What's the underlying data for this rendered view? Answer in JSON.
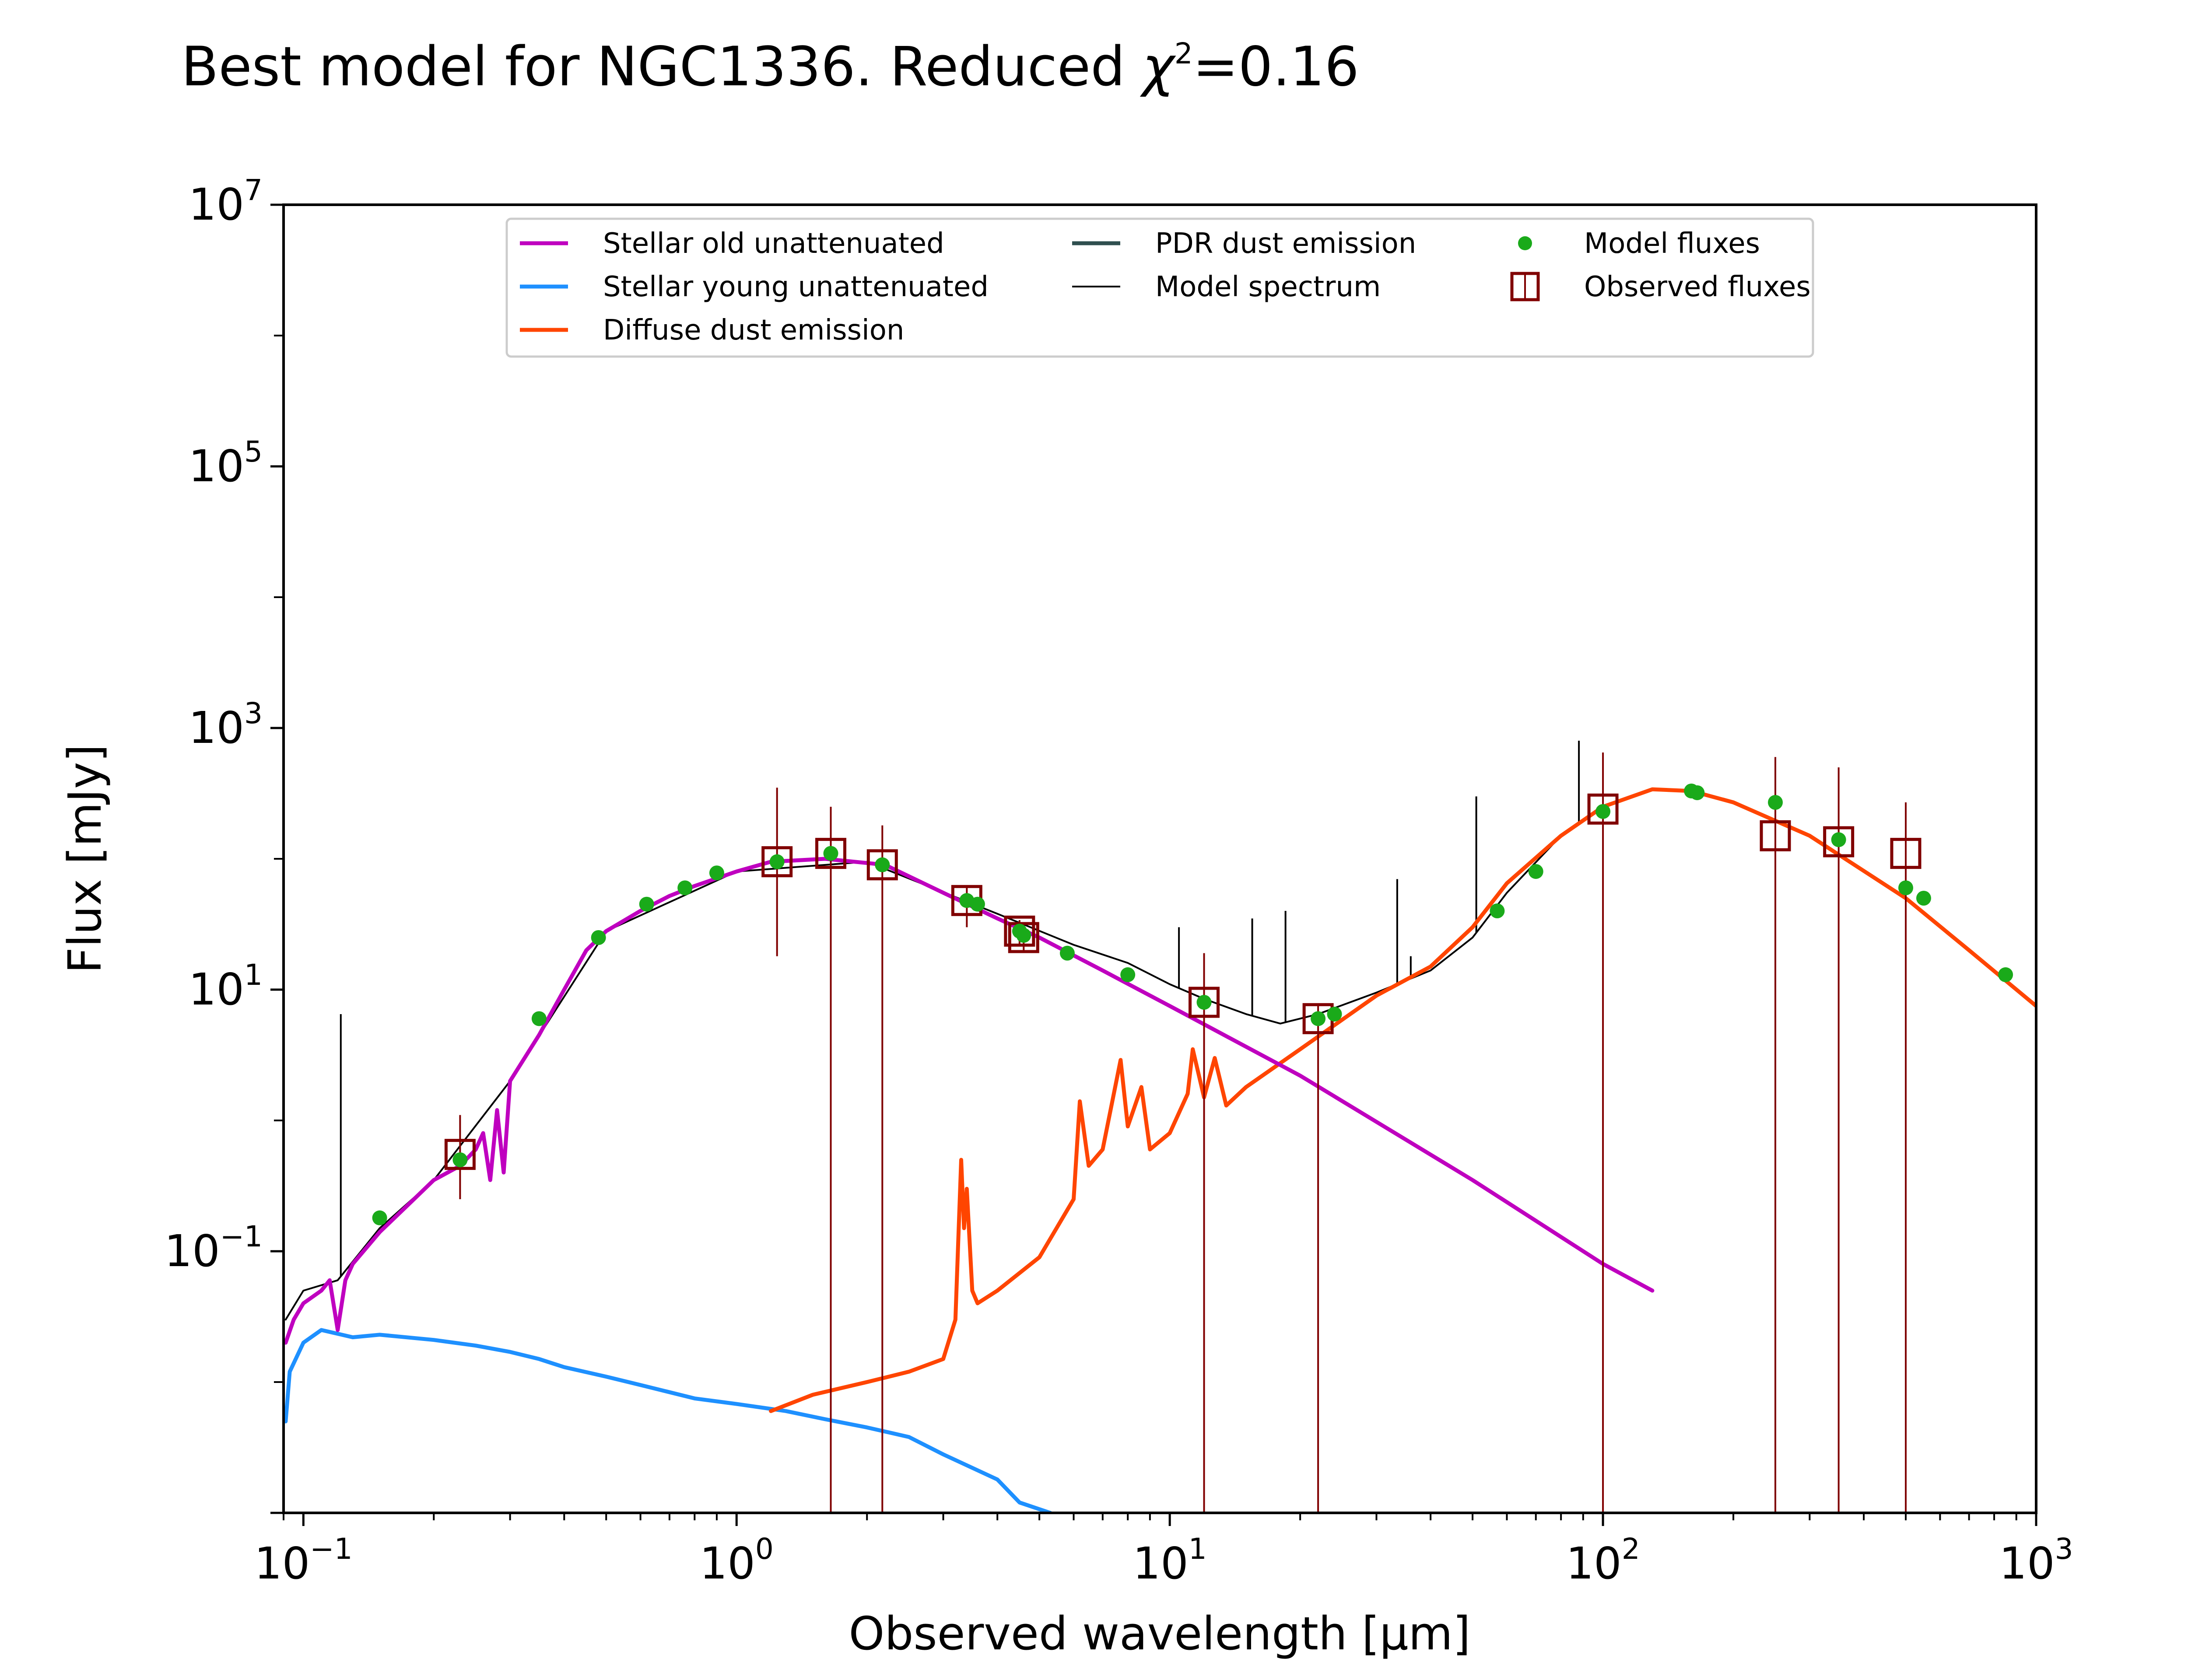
{
  "chart_data": {
    "type": "line",
    "title": "Best model for NGC1336. Reduced χ²=0.16",
    "title_main": "Best model for NGC1336. Reduced ",
    "title_chi": "χ",
    "title_sup": "2",
    "title_tail": "=0.16",
    "xlabel": "Observed wavelength [μm]",
    "ylabel": "Flux [mJy]",
    "x_scale": "log",
    "y_scale": "log",
    "xlim": [
      0.09,
      1000
    ],
    "ylim": [
      0.001,
      10000000
    ],
    "x_ticks": [
      {
        "value": 0.1,
        "base": "10",
        "exp": "−1"
      },
      {
        "value": 1,
        "base": "10",
        "exp": "0"
      },
      {
        "value": 10,
        "base": "10",
        "exp": "1"
      },
      {
        "value": 100,
        "base": "10",
        "exp": "2"
      },
      {
        "value": 1000,
        "base": "10",
        "exp": "3"
      }
    ],
    "y_ticks": [
      {
        "value": 0.1,
        "base": "10",
        "exp": "−1"
      },
      {
        "value": 10,
        "base": "10",
        "exp": "1"
      },
      {
        "value": 1000,
        "base": "10",
        "exp": "3"
      },
      {
        "value": 100000,
        "base": "10",
        "exp": "5"
      },
      {
        "value": 10000000,
        "base": "10",
        "exp": "7"
      }
    ],
    "legend_position": "top-center",
    "legend": [
      {
        "label": "Stellar old unattenuated",
        "kind": "line",
        "color": "#bf00bf"
      },
      {
        "label": "Stellar young unattenuated",
        "kind": "line",
        "color": "#1e90ff"
      },
      {
        "label": "Diffuse dust emission",
        "kind": "line",
        "color": "#ff4500"
      },
      {
        "label": "PDR dust emission",
        "kind": "line",
        "color": "#2f4f4f"
      },
      {
        "label": "Model spectrum",
        "kind": "thin-line",
        "color": "#000000"
      },
      {
        "label": "Model fluxes",
        "kind": "dot",
        "color": "#1aaa1a"
      },
      {
        "label": "Observed fluxes",
        "kind": "square",
        "color": "#800000"
      }
    ],
    "series": [
      {
        "name": "Stellar old unattenuated",
        "color": "#bf00bf",
        "x": [
          0.091,
          0.095,
          0.1,
          0.11,
          0.115,
          0.12,
          0.125,
          0.13,
          0.15,
          0.18,
          0.2,
          0.23,
          0.25,
          0.26,
          0.27,
          0.28,
          0.29,
          0.3,
          0.35,
          0.4,
          0.45,
          0.5,
          0.6,
          0.7,
          0.8,
          1.0,
          1.2,
          1.6,
          2.2,
          3.0,
          4.0,
          5.0,
          7.0,
          10.0,
          20.0,
          50.0,
          100.0,
          130.0
        ],
        "y": [
          0.02,
          0.03,
          0.04,
          0.05,
          0.06,
          0.025,
          0.06,
          0.08,
          0.14,
          0.25,
          0.35,
          0.45,
          0.6,
          0.8,
          0.35,
          1.2,
          0.4,
          2.0,
          4.5,
          10,
          20,
          28,
          40,
          52,
          62,
          80,
          95,
          100,
          90,
          55,
          35,
          25,
          14,
          7.5,
          2.2,
          0.35,
          0.08,
          0.05
        ]
      },
      {
        "name": "Stellar young unattenuated",
        "color": "#1e90ff",
        "x": [
          0.091,
          0.093,
          0.1,
          0.11,
          0.13,
          0.15,
          0.2,
          0.25,
          0.3,
          0.35,
          0.4,
          0.5,
          0.6,
          0.8,
          1.0,
          1.3,
          1.6,
          2.0,
          2.5,
          3.0,
          4.0,
          4.5,
          5.3
        ],
        "y": [
          0.005,
          0.012,
          0.02,
          0.025,
          0.022,
          0.023,
          0.021,
          0.019,
          0.017,
          0.015,
          0.013,
          0.011,
          0.0095,
          0.0075,
          0.0068,
          0.006,
          0.0052,
          0.0045,
          0.0038,
          0.0028,
          0.0018,
          0.0012,
          0.001
        ]
      },
      {
        "name": "Diffuse dust emission",
        "color": "#ff4500",
        "x": [
          1.2,
          1.5,
          2.0,
          2.5,
          3.0,
          3.2,
          3.3,
          3.35,
          3.4,
          3.5,
          3.6,
          4.0,
          5.0,
          6.0,
          6.2,
          6.5,
          7.0,
          7.7,
          8.0,
          8.6,
          9.0,
          10.0,
          11.0,
          11.3,
          12.0,
          12.7,
          13.5,
          15.0,
          20.0,
          30.0,
          40.0,
          50.0,
          60.0,
          80.0,
          100.0,
          130.0,
          160.0,
          200.0,
          300.0,
          500.0,
          700.0,
          1000.0
        ],
        "y": [
          0.006,
          0.008,
          0.01,
          0.012,
          0.015,
          0.03,
          0.5,
          0.15,
          0.3,
          0.05,
          0.04,
          0.05,
          0.09,
          0.25,
          1.4,
          0.45,
          0.6,
          2.9,
          0.9,
          1.8,
          0.6,
          0.8,
          1.6,
          3.5,
          1.5,
          3.0,
          1.3,
          1.8,
          3.5,
          9,
          15,
          30,
          65,
          150,
          250,
          340,
          330,
          270,
          150,
          50,
          20,
          7.5
        ]
      },
      {
        "name": "Model spectrum",
        "color": "#000000",
        "x": [
          0.091,
          0.1,
          0.12,
          0.15,
          0.2,
          0.3,
          0.5,
          1.0,
          2.0,
          4.0,
          6.0,
          8.0,
          10.0,
          12.0,
          15.0,
          18.0,
          22.0,
          30.0,
          40.0,
          50.0,
          60.0,
          80.0,
          100.0,
          130.0,
          160.0,
          200.0,
          300.0,
          500.0,
          700.0,
          1000.0
        ],
        "y": [
          0.03,
          0.05,
          0.06,
          0.15,
          0.35,
          2.0,
          28,
          80,
          95,
          38,
          22,
          16,
          11,
          8.5,
          6.5,
          5.5,
          6.5,
          9.5,
          14,
          25,
          55,
          150,
          250,
          340,
          330,
          270,
          150,
          50,
          20,
          7.5
        ]
      }
    ],
    "model_spectrum_lines": [
      {
        "x": 0.122,
        "y_top": 6.5
      },
      {
        "x": 10.5,
        "y_top": 30
      },
      {
        "x": 15.5,
        "y_top": 35
      },
      {
        "x": 18.5,
        "y_top": 40
      },
      {
        "x": 33.5,
        "y_top": 70
      },
      {
        "x": 36.0,
        "y_top": 18
      },
      {
        "x": 51.0,
        "y_top": 300
      },
      {
        "x": 88.0,
        "y_top": 800
      }
    ],
    "model_fluxes": {
      "name": "Model fluxes",
      "color": "#1aaa1a",
      "x": [
        0.15,
        0.23,
        0.35,
        0.48,
        0.62,
        0.76,
        0.9,
        1.24,
        1.65,
        2.17,
        3.4,
        3.6,
        4.5,
        4.6,
        5.8,
        8.0,
        12.0,
        22.0,
        24.0,
        57.0,
        70.0,
        100.0,
        160.0,
        165.0,
        250.0,
        350.0,
        500.0,
        550.0,
        850.0
      ],
      "y": [
        0.18,
        0.5,
        6.0,
        25,
        45,
        60,
        78,
        95,
        110,
        90,
        48,
        45,
        28,
        26,
        19,
        13,
        8.0,
        6.0,
        6.5,
        40,
        80,
        230,
        330,
        320,
        270,
        140,
        60,
        50,
        13
      ]
    },
    "observed_fluxes": {
      "name": "Observed fluxes",
      "color": "#800000",
      "points": [
        {
          "x": 0.23,
          "y": 0.55,
          "lo": 0.25,
          "hi": 1.1
        },
        {
          "x": 1.24,
          "y": 95,
          "lo": 18,
          "hi": 350
        },
        {
          "x": 1.65,
          "y": 110,
          "lo": 0.001,
          "hi": 250
        },
        {
          "x": 2.17,
          "y": 90,
          "lo": 0.001,
          "hi": 180
        },
        {
          "x": 3.4,
          "y": 48,
          "lo": 30,
          "hi": 60
        },
        {
          "x": 4.5,
          "y": 28,
          "lo": 22,
          "hi": 34
        },
        {
          "x": 4.6,
          "y": 25,
          "lo": 20,
          "hi": 30
        },
        {
          "x": 12.0,
          "y": 8.0,
          "lo": 0.001,
          "hi": 19
        },
        {
          "x": 22.0,
          "y": 6.0,
          "lo": 0.001,
          "hi": 7.5
        },
        {
          "x": 100.0,
          "y": 240,
          "lo": 0.001,
          "hi": 650
        },
        {
          "x": 250.0,
          "y": 150,
          "lo": 0.001,
          "hi": 600
        },
        {
          "x": 350.0,
          "y": 135,
          "lo": 0.001,
          "hi": 500
        },
        {
          "x": 500.0,
          "y": 110,
          "lo": 0.001,
          "hi": 270
        }
      ]
    }
  }
}
